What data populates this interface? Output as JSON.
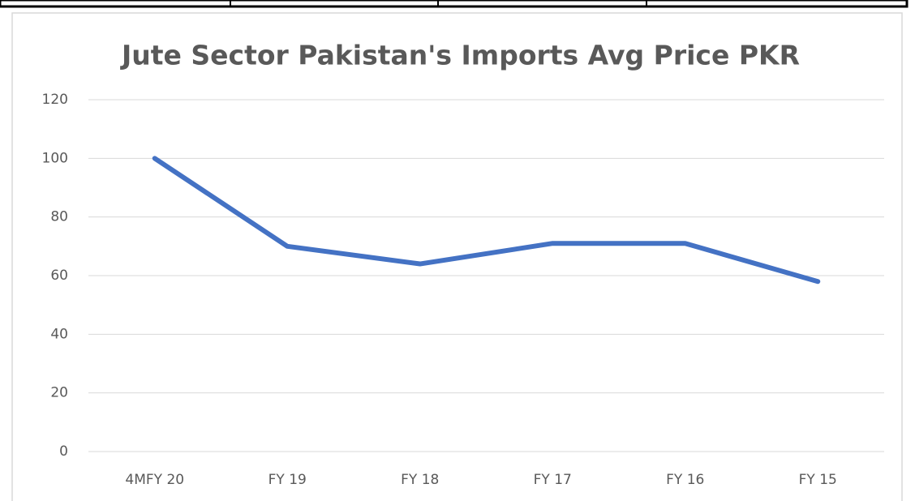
{
  "chart_data": {
    "type": "line",
    "title": "Jute Sector Pakistan's Imports Avg Price PKR",
    "categories": [
      "4MFY 20",
      "FY 19",
      "FY 18",
      "FY 17",
      "FY 16",
      "FY 15"
    ],
    "values": [
      100,
      70,
      64,
      71,
      71,
      58
    ],
    "color": "#4472c4",
    "ylim": [
      0,
      120
    ],
    "yticks": [
      0,
      20,
      40,
      60,
      80,
      100,
      120
    ],
    "grid": true
  }
}
